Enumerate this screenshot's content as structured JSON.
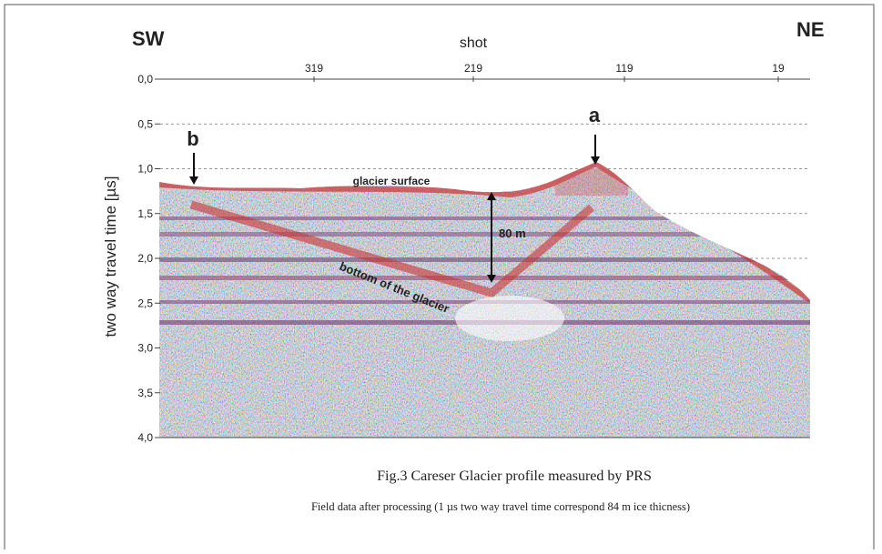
{
  "figure": {
    "corner_labels": {
      "left": "SW",
      "right": "NE"
    },
    "x_axis_label": "shot",
    "x_ticks": [
      "319",
      "219",
      "119",
      "19"
    ],
    "y_axis_label": "two way travel time [µs]",
    "y_ticks": [
      "0,0",
      "0,5",
      "1,0",
      "1,5",
      "2,0",
      "2,5",
      "3,0",
      "3,5",
      "4,0"
    ],
    "annotations": {
      "a": "a",
      "b": "b",
      "surface": "glacier surface",
      "thickness": "80 m",
      "bottom": "bottom of the glacier"
    },
    "caption": "Fig.3 Careser Glacier profile measured by PRS",
    "subcaption": "Field  data after processing (1 µs two way travel time correspond 84 m ice thicness)"
  }
}
